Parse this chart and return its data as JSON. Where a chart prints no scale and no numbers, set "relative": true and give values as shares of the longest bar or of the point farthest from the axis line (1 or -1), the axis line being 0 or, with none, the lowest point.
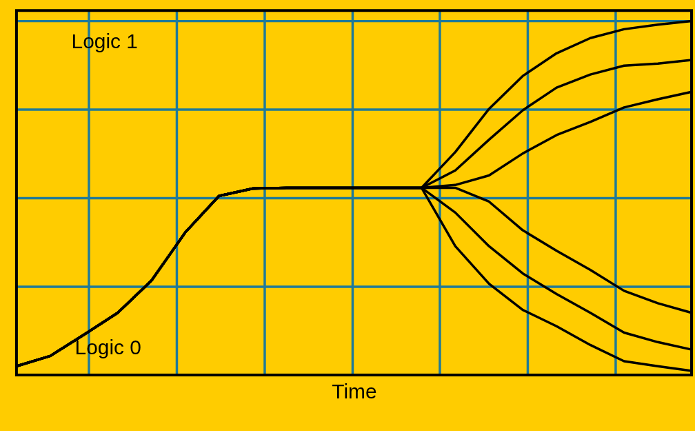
{
  "chart_data": {
    "type": "line",
    "relative": true,
    "xlabel": "Time",
    "annotations": [
      "Logic 1",
      "Logic 0"
    ],
    "grid": true,
    "legend": false,
    "marker": "none",
    "line_style": "solid",
    "categories": [
      null,
      null,
      null,
      null,
      null,
      null,
      null,
      null,
      null,
      null,
      null,
      null,
      null,
      null,
      null,
      null,
      null,
      null,
      null,
      null,
      null
    ],
    "series": [
      {
        "color": "#000000",
        "values": [
          0.025,
          0.054,
          0.114,
          0.176,
          0.267,
          0.403,
          0.506,
          0.527,
          0.529,
          0.529,
          0.529,
          0.529,
          0.529,
          0.63,
          0.752,
          0.845,
          0.909,
          0.952,
          0.977,
          0.99,
          1.0
        ]
      },
      {
        "color": "#000000",
        "values": [
          0.025,
          0.054,
          0.114,
          0.176,
          0.267,
          0.403,
          0.506,
          0.527,
          0.529,
          0.529,
          0.529,
          0.529,
          0.529,
          0.578,
          0.665,
          0.748,
          0.812,
          0.849,
          0.874,
          0.88,
          0.89
        ]
      },
      {
        "color": "#000000",
        "values": [
          0.025,
          0.054,
          0.114,
          0.176,
          0.267,
          0.403,
          0.506,
          0.527,
          0.529,
          0.529,
          0.529,
          0.529,
          0.529,
          0.537,
          0.564,
          0.626,
          0.678,
          0.715,
          0.756,
          0.779,
          0.8
        ]
      },
      {
        "color": "#000000",
        "values": [
          0.025,
          0.054,
          0.114,
          0.176,
          0.267,
          0.403,
          0.506,
          0.527,
          0.529,
          0.529,
          0.529,
          0.529,
          0.529,
          0.529,
          0.49,
          0.409,
          0.351,
          0.297,
          0.238,
          0.203,
          0.176
        ]
      },
      {
        "color": "#000000",
        "values": [
          0.025,
          0.054,
          0.114,
          0.176,
          0.267,
          0.403,
          0.506,
          0.527,
          0.529,
          0.529,
          0.529,
          0.529,
          0.529,
          0.459,
          0.364,
          0.287,
          0.229,
          0.176,
          0.12,
          0.093,
          0.072
        ]
      },
      {
        "color": "#000000",
        "values": [
          0.025,
          0.054,
          0.114,
          0.176,
          0.267,
          0.403,
          0.506,
          0.527,
          0.529,
          0.529,
          0.529,
          0.529,
          0.529,
          0.364,
          0.258,
          0.184,
          0.138,
          0.085,
          0.039,
          0.025,
          0.012
        ]
      }
    ]
  }
}
